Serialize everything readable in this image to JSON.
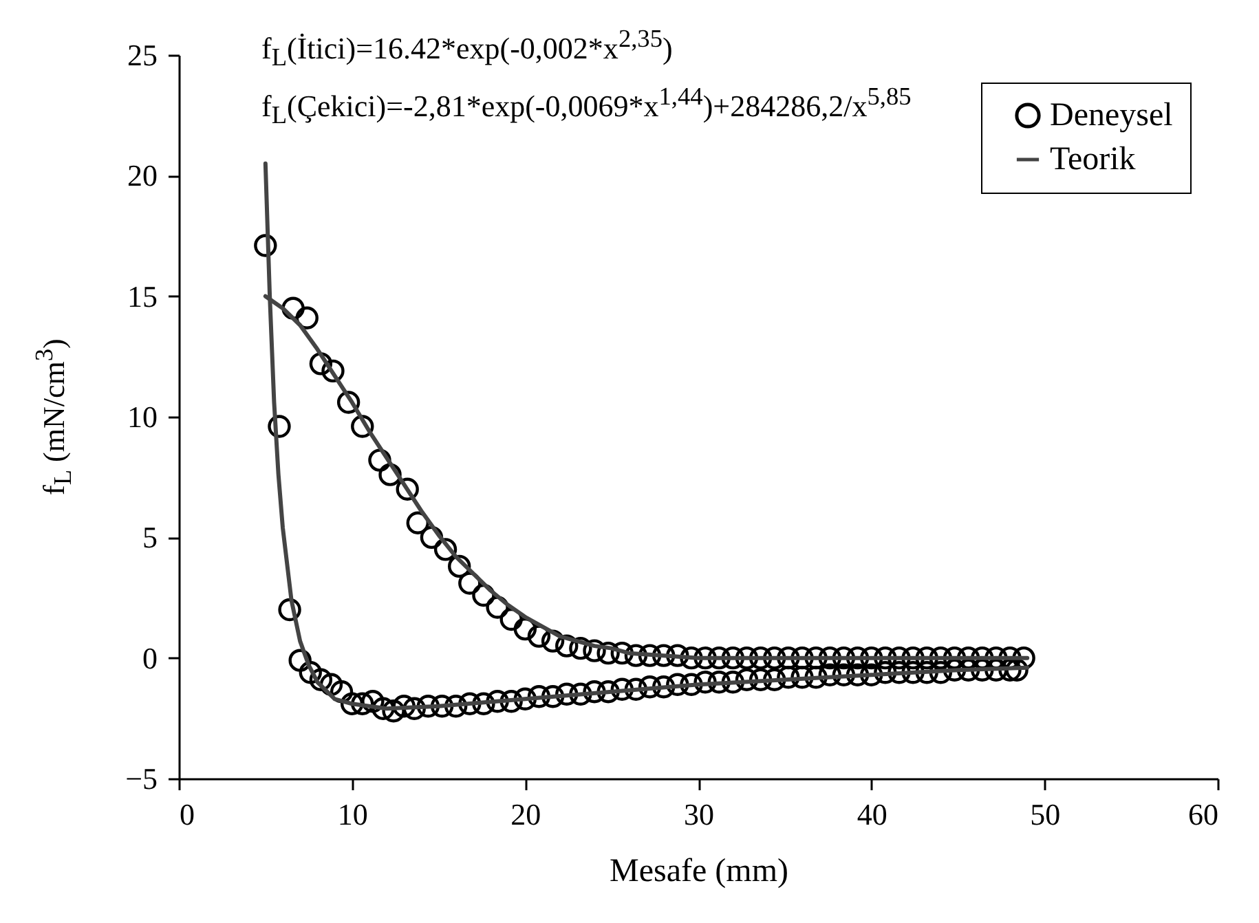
{
  "chart_data": {
    "type": "scatter",
    "xlabel": "Mesafe (mm)",
    "ylabel": "f$_{L}$ (mN/cm$^{3}$)",
    "annotations": [
      "f$_{L}$(İtici)=16.42*exp(-0,002*x$^{2,35}$)",
      "f$_{L}$(Çekici)=-2,81*exp(-0,0069*x$^{1,44}$)+284286,2/x$^{5,85}$"
    ],
    "xlim": [
      0,
      60
    ],
    "xticks": [
      0,
      10,
      20,
      30,
      40,
      50,
      60
    ],
    "ylim": [
      -5,
      25
    ],
    "yticks": [
      -5,
      0,
      5,
      10,
      15,
      20,
      25
    ],
    "legend": "top right",
    "series": [
      {
        "name": "Deneysel",
        "color": "#000000",
        "marker": "circle",
        "x": [
          6.6,
          7.4,
          8.2,
          8.9,
          9.8,
          10.6,
          11.6,
          12.2,
          13.2,
          13.8,
          14.6,
          15.4,
          16.2,
          16.8,
          17.6,
          18.4,
          19.2,
          20.0,
          20.8,
          21.6,
          22.4,
          23.2,
          24.0,
          24.8,
          25.6,
          26.4,
          27.2,
          28.0,
          28.8,
          29.6,
          30.4,
          31.2,
          32.0,
          32.8,
          33.6,
          34.4,
          35.2,
          36.0,
          36.8,
          37.6,
          38.4,
          39.2,
          40.0,
          40.8,
          41.6,
          42.4,
          43.2,
          44.0,
          44.8,
          45.6,
          46.4,
          47.2,
          48.0,
          48.8,
          5.0,
          5.8,
          6.4,
          7.0,
          7.6,
          8.2,
          8.8,
          9.4,
          10.0,
          10.6,
          11.2,
          11.8,
          12.4,
          13.0,
          13.6,
          14.4,
          15.2,
          16.0,
          16.8,
          17.6,
          18.4,
          19.2,
          20.0,
          20.8,
          21.6,
          22.4,
          23.2,
          24.0,
          24.8,
          25.6,
          26.4,
          27.2,
          28.0,
          28.8,
          29.6,
          30.4,
          31.2,
          32.0,
          32.8,
          33.6,
          34.4,
          35.2,
          36.0,
          36.8,
          37.6,
          38.4,
          39.2,
          40.0,
          40.8,
          41.6,
          42.4,
          43.2,
          44.0,
          44.8,
          45.6,
          46.4,
          47.2,
          48.0,
          48.4
        ],
        "values": [
          14.5,
          14.1,
          12.2,
          11.9,
          10.6,
          9.6,
          8.2,
          7.6,
          7.0,
          5.6,
          5.0,
          4.5,
          3.8,
          3.1,
          2.6,
          2.1,
          1.6,
          1.2,
          0.9,
          0.7,
          0.5,
          0.4,
          0.3,
          0.2,
          0.2,
          0.1,
          0.1,
          0.1,
          0.1,
          0.0,
          0.0,
          0.0,
          0.0,
          0.0,
          0.0,
          0.0,
          0.0,
          0.0,
          0.0,
          0.0,
          0.0,
          0.0,
          0.0,
          0.0,
          0.0,
          0.0,
          0.0,
          0.0,
          0.0,
          0.0,
          0.0,
          0.0,
          0.0,
          0.0,
          17.1,
          9.6,
          2.0,
          -0.1,
          -0.6,
          -0.9,
          -1.1,
          -1.4,
          -1.9,
          -1.9,
          -1.8,
          -2.1,
          -2.2,
          -2.0,
          -2.1,
          -2.0,
          -2.0,
          -2.0,
          -1.9,
          -1.9,
          -1.8,
          -1.8,
          -1.7,
          -1.6,
          -1.6,
          -1.5,
          -1.5,
          -1.4,
          -1.4,
          -1.3,
          -1.3,
          -1.2,
          -1.2,
          -1.1,
          -1.1,
          -1.0,
          -1.0,
          -1.0,
          -0.9,
          -0.9,
          -0.9,
          -0.8,
          -0.8,
          -0.8,
          -0.7,
          -0.7,
          -0.7,
          -0.7,
          -0.6,
          -0.6,
          -0.6,
          -0.6,
          -0.6,
          -0.5,
          -0.5,
          -0.5,
          -0.5,
          -0.5,
          -0.5
        ]
      },
      {
        "type": "line",
        "name": "Teorik",
        "color": "#444444",
        "line_style": "solid",
        "x": [
          5,
          6,
          7,
          8,
          9,
          10,
          11,
          12,
          13,
          14,
          15,
          16,
          17,
          18,
          19,
          20,
          21,
          22,
          23,
          24,
          25,
          26,
          28,
          30,
          32,
          35,
          40,
          45,
          49
        ],
        "values": [
          15.0,
          14.5,
          13.8,
          12.8,
          11.7,
          10.6,
          9.4,
          8.3,
          7.2,
          6.1,
          5.1,
          4.2,
          3.5,
          2.8,
          2.2,
          1.7,
          1.3,
          0.9,
          0.7,
          0.5,
          0.4,
          0.2,
          0.1,
          0.0,
          0.0,
          0.0,
          0.0,
          0.0,
          0.0
        ]
      },
      {
        "type": "line",
        "color": "#444444",
        "line_style": "solid",
        "x": [
          5,
          5.25,
          5.5,
          5.75,
          6,
          6.5,
          7,
          7.5,
          8,
          9,
          10,
          12,
          15,
          20,
          25,
          30,
          35,
          40,
          45,
          49
        ],
        "values": [
          20.5,
          15.0,
          10.6,
          7.6,
          5.4,
          2.4,
          0.7,
          -0.3,
          -1.0,
          -1.7,
          -1.9,
          -2.1,
          -2.0,
          -1.7,
          -1.4,
          -1.1,
          -0.9,
          -0.7,
          -0.5,
          -0.4
        ]
      }
    ]
  }
}
